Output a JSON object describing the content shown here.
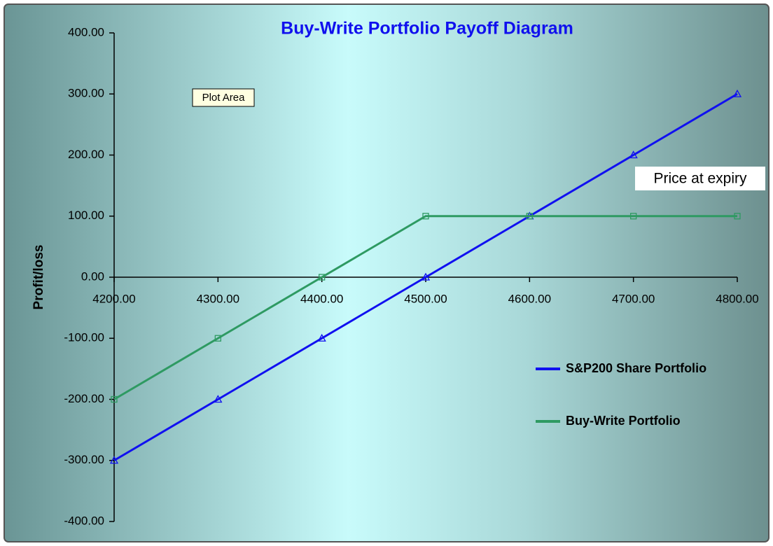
{
  "chart_data": {
    "type": "line",
    "title": "Buy-Write Portfolio Payoff Diagram",
    "y_label": "Profit/loss",
    "annotations": [
      "Plot Area",
      "Price at expiry"
    ],
    "x": [
      4200,
      4300,
      4400,
      4500,
      4600,
      4700,
      4800
    ],
    "series": [
      {
        "name": "S&P200 Share Portfolio",
        "color": "#1010f0",
        "marker": "triangle",
        "values": [
          -300,
          -200,
          -100,
          0,
          100,
          200,
          300
        ]
      },
      {
        "name": "Buy-Write Portfolio",
        "color": "#2e9a62",
        "marker": "square",
        "values": [
          -200,
          -100,
          0,
          100,
          100,
          100,
          100
        ]
      }
    ],
    "xlim": [
      4200,
      4800
    ],
    "xticks": [
      {
        "value": 4200,
        "label": "4200.00"
      },
      {
        "value": 4300,
        "label": "4300.00"
      },
      {
        "value": 4400,
        "label": "4400.00"
      },
      {
        "value": 4500,
        "label": "4500.00"
      },
      {
        "value": 4600,
        "label": "4600.00"
      },
      {
        "value": 4700,
        "label": "4700.00"
      },
      {
        "value": 4800,
        "label": "4800.00"
      }
    ],
    "ylim": [
      -400,
      400
    ],
    "yticks": [
      {
        "value": -400,
        "label": "-400.00"
      },
      {
        "value": -300,
        "label": "-300.00"
      },
      {
        "value": -200,
        "label": "-200.00"
      },
      {
        "value": -100,
        "label": "-100.00"
      },
      {
        "value": 0,
        "label": "0.00"
      },
      {
        "value": 100,
        "label": "100.00"
      },
      {
        "value": 200,
        "label": "200.00"
      },
      {
        "value": 300,
        "label": "300.00"
      },
      {
        "value": 400,
        "label": "400.00"
      }
    ],
    "legend": "right"
  }
}
